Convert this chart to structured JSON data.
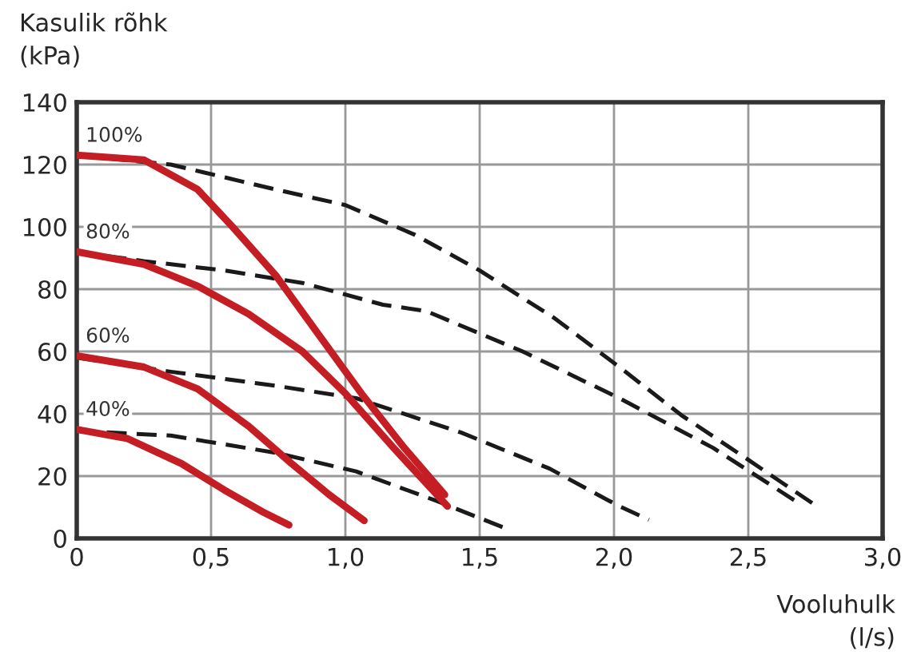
{
  "chart_data": {
    "type": "line",
    "ylabel": "Kasulik rõhk\n(kPa)",
    "xlabel": "Vooluhulk\n(l/s)",
    "xlim": [
      0,
      3
    ],
    "xticks": [
      0,
      {
        "value": 0.5,
        "label": "0,5"
      },
      {
        "value": 1.0,
        "label": "1,0"
      },
      {
        "value": 1.5,
        "label": "1,5"
      },
      {
        "value": 2.0,
        "label": "2,0"
      },
      {
        "value": 2.5,
        "label": "2,5"
      },
      {
        "value": 3.0,
        "label": "3,0"
      }
    ],
    "ylim": [
      0,
      140
    ],
    "yticks": [
      0,
      20,
      40,
      60,
      80,
      100,
      120,
      140
    ],
    "grid": true,
    "legend": false,
    "series": [
      {
        "name": "100%",
        "color": "#c41e24",
        "line_style": "solid",
        "x": [
          0,
          0.25,
          0.45,
          0.58,
          0.74,
          0.9,
          1.06,
          1.22,
          1.37
        ],
        "values": [
          123,
          121.5,
          112,
          100,
          84.5,
          65.5,
          46.5,
          29,
          14
        ]
      },
      {
        "name": "80%",
        "color": "#c41e24",
        "line_style": "solid",
        "x": [
          0,
          0.25,
          0.45,
          0.64,
          0.84,
          1.0,
          1.18,
          1.38
        ],
        "values": [
          92,
          88,
          81,
          72,
          60,
          46.5,
          29,
          10.3
        ]
      },
      {
        "name": "60%",
        "color": "#c41e24",
        "line_style": "solid",
        "x": [
          0,
          0.25,
          0.45,
          0.64,
          0.8,
          0.94,
          1.07
        ],
        "values": [
          58.6,
          55,
          48,
          36,
          24,
          14,
          5.7
        ]
      },
      {
        "name": "40%",
        "color": "#c41e24",
        "line_style": "solid",
        "x": [
          0,
          0.19,
          0.39,
          0.55,
          0.69,
          0.79
        ],
        "values": [
          35,
          32,
          24,
          15.5,
          8.6,
          4.3
        ]
      },
      {
        "color": "#1a1a1a",
        "line_style": "dashed",
        "x": [
          0,
          0.35,
          0.74,
          1.0,
          1.26,
          1.5,
          1.78,
          2.02,
          2.25,
          2.49,
          2.74
        ],
        "values": [
          123,
          120,
          112,
          107,
          97.4,
          86,
          70.6,
          55,
          39.6,
          25.8,
          11.2
        ]
      },
      {
        "color": "#1a1a1a",
        "line_style": "dashed",
        "x": [
          0,
          0.25,
          0.55,
          0.84,
          1.14,
          1.3,
          1.66,
          2.02,
          2.37,
          2.69
        ],
        "values": [
          92,
          89,
          86,
          82,
          75,
          73,
          60,
          45,
          29,
          11.2
        ]
      },
      {
        "color": "#1a1a1a",
        "line_style": "dashed",
        "x": [
          0,
          0.35,
          0.74,
          1.04,
          1.43,
          1.76,
          2.02,
          2.13
        ],
        "values": [
          58,
          53.5,
          49,
          45,
          34,
          22.4,
          10.3,
          6
        ]
      },
      {
        "color": "#1a1a1a",
        "line_style": "dashed",
        "x": [
          0,
          0.35,
          0.74,
          1.04,
          1.34,
          1.6
        ],
        "values": [
          34.5,
          33,
          27.5,
          21.5,
          12,
          3.1
        ]
      }
    ]
  }
}
